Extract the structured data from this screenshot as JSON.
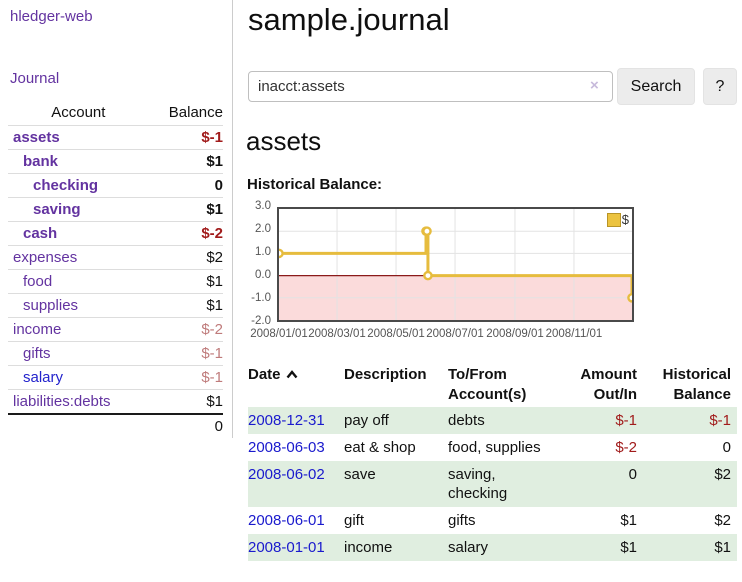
{
  "app": {
    "brand": "hledger-web",
    "nav_journal": "Journal"
  },
  "sidebar": {
    "headers": {
      "account": "Account",
      "balance": "Balance"
    },
    "accounts": [
      {
        "name": "assets",
        "level": 0,
        "bold": true,
        "balance": "$-1",
        "negative": "strong"
      },
      {
        "name": "bank",
        "level": 1,
        "bold": true,
        "balance": "$1",
        "negative": null
      },
      {
        "name": "checking",
        "level": 2,
        "bold": true,
        "balance": "0",
        "negative": null
      },
      {
        "name": "saving",
        "level": 2,
        "bold": true,
        "balance": "$1",
        "negative": null
      },
      {
        "name": "cash",
        "level": 1,
        "bold": true,
        "balance": "$-2",
        "negative": "strong"
      },
      {
        "name": "expenses",
        "level": 0,
        "bold": false,
        "balance": "$2",
        "negative": null
      },
      {
        "name": "food",
        "level": 1,
        "bold": false,
        "balance": "$1",
        "negative": null
      },
      {
        "name": "supplies",
        "level": 1,
        "bold": false,
        "balance": "$1",
        "negative": null
      },
      {
        "name": "income",
        "level": 0,
        "bold": false,
        "balance": "$-2",
        "negative": "soft"
      },
      {
        "name": "gifts",
        "level": 1,
        "bold": false,
        "balance": "$-1",
        "negative": "soft"
      },
      {
        "name": "salary",
        "level": 1,
        "bold": false,
        "balance": "$-1",
        "negative": "soft",
        "link_blue": true
      },
      {
        "name": "liabilities:debts",
        "level": 0,
        "bold": false,
        "balance": "$1",
        "negative": null
      }
    ],
    "total": "0"
  },
  "header": {
    "title": "sample.journal"
  },
  "search": {
    "query": "inacct:assets",
    "clear_icon": "×",
    "button": "Search",
    "help_button": "?"
  },
  "account_page": {
    "heading": "assets",
    "chart_label": "Historical Balance:"
  },
  "chart_data": {
    "type": "line",
    "title": "Historical Balance",
    "step": true,
    "series": [
      {
        "name": "$",
        "color": "#e6bc3e",
        "points": [
          {
            "date": "2008-01-01",
            "day": 0,
            "value": 1
          },
          {
            "date": "2008-06-01",
            "day": 152,
            "value": 2
          },
          {
            "date": "2008-06-02",
            "day": 153,
            "value": 2
          },
          {
            "date": "2008-06-03",
            "day": 154,
            "value": 0
          },
          {
            "date": "2008-12-31",
            "day": 365,
            "value": -1
          }
        ]
      }
    ],
    "x_ticks": [
      {
        "label": "2008/01/01",
        "day": 0
      },
      {
        "label": "2008/03/01",
        "day": 60
      },
      {
        "label": "2008/05/01",
        "day": 121
      },
      {
        "label": "2008/07/01",
        "day": 182
      },
      {
        "label": "2008/09/01",
        "day": 244
      },
      {
        "label": "2008/11/01",
        "day": 305
      }
    ],
    "y_ticks": [
      {
        "label": "3.0",
        "value": 3
      },
      {
        "label": "2.0",
        "value": 2
      },
      {
        "label": "1.0",
        "value": 1
      },
      {
        "label": "0.0",
        "value": 0
      },
      {
        "label": "-1.0",
        "value": -1
      },
      {
        "label": "-2.0",
        "value": -2
      }
    ],
    "ylim": [
      -2,
      3
    ],
    "xlim_days": [
      0,
      365
    ],
    "grid": true,
    "legend": {
      "label": "$",
      "position": "top-right",
      "swatch_color": "#ecc33f"
    },
    "negative_region_color": "#fbdbdb",
    "zero_line_color": "#8b1a1a"
  },
  "register": {
    "headers": {
      "date": "Date",
      "description": "Description",
      "account": "To/From Account(s)",
      "amount": "Amount Out/In",
      "balance": "Historical Balance",
      "sort": "ascending"
    },
    "rows": [
      {
        "date": "2008-12-31",
        "description": "pay off",
        "account": "debts",
        "amount": "$-1",
        "amount_neg": true,
        "balance": "$-1",
        "balance_neg": true
      },
      {
        "date": "2008-06-03",
        "description": "eat & shop",
        "account": "food, supplies",
        "amount": "$-2",
        "amount_neg": true,
        "balance": "0",
        "balance_neg": false
      },
      {
        "date": "2008-06-02",
        "description": "save",
        "account": "saving, checking",
        "amount": "0",
        "amount_neg": false,
        "balance": "$2",
        "balance_neg": false
      },
      {
        "date": "2008-06-01",
        "description": "gift",
        "account": "gifts",
        "amount": "$1",
        "amount_neg": false,
        "balance": "$2",
        "balance_neg": false
      },
      {
        "date": "2008-01-01",
        "description": "income",
        "account": "salary",
        "amount": "$1",
        "amount_neg": false,
        "balance": "$1",
        "balance_neg": false
      }
    ]
  },
  "colors": {
    "link_purple": "#6333a0",
    "link_blue": "#2323cc",
    "date_blue": "#1a1acd",
    "negative_strong": "#a11b1b",
    "negative_soft": "#bf7b7b",
    "stripe_green": "#e0eee0",
    "chart_line_gold": "#e6bc3e",
    "chart_negative_fill": "#fbdbdb",
    "chart_zero_line": "#8b1a1a"
  }
}
